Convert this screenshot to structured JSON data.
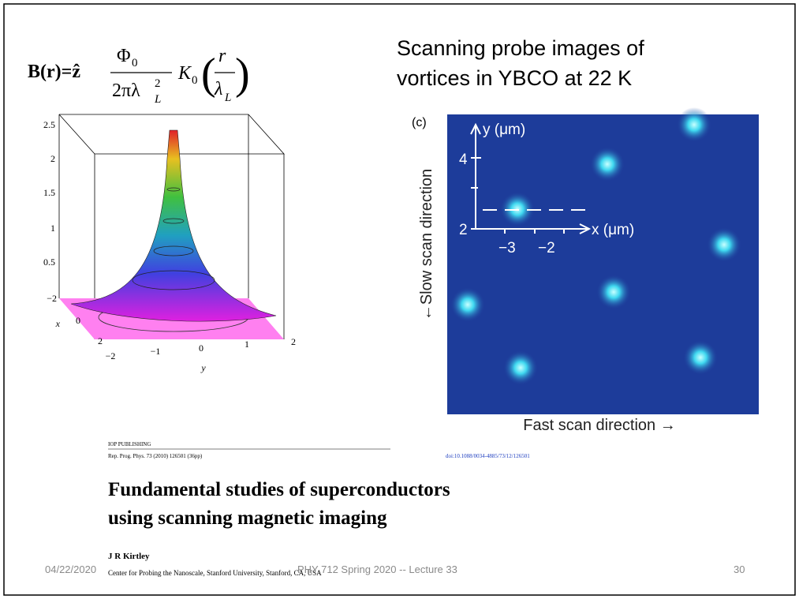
{
  "equation": {
    "lhs": "B(r)=ẑ",
    "numerator": "Φ",
    "numerator_sub": "0",
    "denominator": "2πλ",
    "denominator_sup": "2",
    "denominator_sub": "L",
    "bessel": "K",
    "bessel_sub": "0",
    "arg_numerator": "r",
    "arg_denominator": "λ",
    "arg_denominator_sub": "L"
  },
  "heading": {
    "line1": "Scanning probe images of",
    "line2": "vortices  in YBCO at 22 K"
  },
  "surface_plot": {
    "z_ticks": [
      "2.5",
      "2",
      "1.5",
      "1",
      "0.5"
    ],
    "x_ticks": [
      "−2",
      "0",
      "2"
    ],
    "x_label": "x",
    "y_ticks": [
      "−2",
      "−1",
      "0",
      "1",
      "2"
    ],
    "y_label": "y"
  },
  "scan_image": {
    "panel": "(c)",
    "y_label": "y (μm)",
    "y_ticks": [
      "4",
      "2"
    ],
    "x_label": "x (μm)",
    "x_ticks": [
      "−3",
      "−2"
    ],
    "side_label": "←Slow scan direction",
    "bottom_label": "Fast scan direction →"
  },
  "citation": {
    "publisher": "IOP PUBLISHING",
    "journal": "Rep. Prog. Phys. 73 (2010) 126501 (36pp)",
    "doi": "doi:10.1088/0034-4885/73/12/126501",
    "title_line1": "Fundamental studies of superconductors",
    "title_line2": "using scanning magnetic imaging",
    "author": "J R Kirtley",
    "affiliation": "Center for Probing the Nanoscale, Stanford University, Stanford, CA, USA"
  },
  "footer": {
    "date": "04/22/2020",
    "course": "PHY 712  Spring 2020 -- Lecture 33",
    "page": "30"
  }
}
